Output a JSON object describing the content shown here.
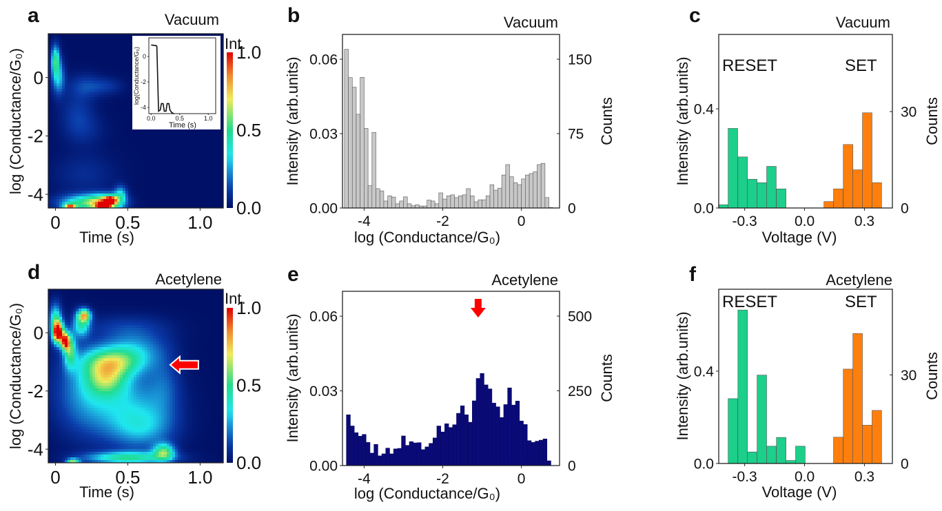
{
  "chart_data": [
    {
      "panel_label": "a",
      "type": "heatmap",
      "title": "Vacuum",
      "xlabel": "Time (s)",
      "ylabel": "log (Conductance/G₀)",
      "xlim": [
        -0.05,
        1.16
      ],
      "ylim": [
        -4.47,
        1.5
      ],
      "xticks": [
        0,
        0.5,
        1.0
      ],
      "xtick_labels": [
        "0",
        "0.5",
        "1.0"
      ],
      "yticks": [
        0,
        -2,
        -4
      ],
      "ytick_labels": [
        "0",
        "-2",
        "-4"
      ],
      "colorbar": {
        "label": "Int.",
        "range": [
          0,
          1
        ],
        "ticks": [
          0,
          0.5,
          1.0
        ],
        "tick_labels": [
          "0.0",
          "0.5",
          "1.0"
        ],
        "colormap": "jet"
      },
      "hotspots": [
        {
          "time": 0.0,
          "logG": 0.6,
          "intensity": 0.45,
          "sigma_time": 0.02,
          "sigma_logG": 0.35
        },
        {
          "time": 0.02,
          "logG": 0.0,
          "intensity": 0.3,
          "sigma_time": 0.03,
          "sigma_logG": 0.4
        },
        {
          "time": 0.2,
          "logG": -0.3,
          "intensity": 0.12,
          "sigma_time": 0.08,
          "sigma_logG": 0.3
        },
        {
          "time": 0.35,
          "logG": -0.3,
          "intensity": 0.1,
          "sigma_time": 0.08,
          "sigma_logG": 0.2
        },
        {
          "time": 0.15,
          "logG": -1.2,
          "intensity": 0.1,
          "sigma_time": 0.08,
          "sigma_logG": 0.5
        },
        {
          "time": 0.2,
          "logG": -1.8,
          "intensity": 0.07,
          "sigma_time": 0.1,
          "sigma_logG": 0.4
        },
        {
          "time": 0.2,
          "logG": -3.3,
          "intensity": 0.08,
          "sigma_time": 0.15,
          "sigma_logG": 0.5
        },
        {
          "time": 0.2,
          "logG": -4.3,
          "intensity": 0.45,
          "sigma_time": 0.12,
          "sigma_logG": 0.2
        },
        {
          "time": 0.35,
          "logG": -4.3,
          "intensity": 0.6,
          "sigma_time": 0.08,
          "sigma_logG": 0.2
        },
        {
          "time": 0.33,
          "logG": -4.45,
          "intensity": 0.9,
          "sigma_time": 0.03,
          "sigma_logG": 0.1
        },
        {
          "time": 0.38,
          "logG": -4.2,
          "intensity": 0.7,
          "sigma_time": 0.03,
          "sigma_logG": 0.1
        },
        {
          "time": 0.1,
          "logG": -4.45,
          "intensity": 0.8,
          "sigma_time": 0.03,
          "sigma_logG": 0.08
        },
        {
          "time": 0.45,
          "logG": -4.0,
          "intensity": 0.3,
          "sigma_time": 0.03,
          "sigma_logG": 0.2
        }
      ],
      "inset": {
        "type": "line",
        "xlabel": "Time (s)",
        "ylabel": "log(Conductance/G₀)",
        "xlim": [
          -0.04,
          1.13
        ],
        "ylim": [
          -4.49,
          1.46
        ],
        "xticks": [
          0,
          0.5,
          1.0
        ],
        "xtick_labels": [
          "0.0",
          "0.5",
          "1.0"
        ],
        "yticks": [
          0,
          -2,
          -4
        ],
        "ytick_labels": [
          "0",
          "-2",
          "-4"
        ],
        "x": [
          0,
          0.09,
          0.1,
          0.13,
          0.16,
          0.18,
          0.21,
          0.23,
          0.26,
          0.28,
          0.31,
          0.33,
          0.36,
          0.4
        ],
        "y": [
          0.9,
          0.85,
          0.8,
          -4.3,
          -4.2,
          -3.7,
          -3.7,
          -4.3,
          -4.3,
          -3.7,
          -3.7,
          -4.2,
          -4.4,
          -4.5
        ]
      }
    },
    {
      "panel_label": "b",
      "type": "bar",
      "title": "Vacuum",
      "xlabel": "log (Conductance/G₀)",
      "ylabel": "Intensity (arb.units)",
      "ylabel_right": "Counts",
      "xlim": [
        -4.55,
        0.97
      ],
      "ylim": [
        0,
        0.07
      ],
      "ylim_right": [
        0,
        175
      ],
      "xticks": [
        -4,
        -2,
        0
      ],
      "xtick_labels": [
        "-4",
        "-2",
        "0"
      ],
      "yticks": [
        0,
        0.03,
        0.06
      ],
      "ytick_labels": [
        "0.00",
        "0.03",
        "0.06"
      ],
      "yticks_right": [
        0,
        75,
        150
      ],
      "ytick_labels_right": [
        "0",
        "75",
        "150"
      ],
      "bin_width": 0.1,
      "color": "#c8c8c8",
      "x": [
        -4.45,
        -4.35,
        -4.25,
        -4.15,
        -4.05,
        -3.95,
        -3.85,
        -3.75,
        -3.65,
        -3.55,
        -3.45,
        -3.35,
        -3.25,
        -3.15,
        -3.05,
        -2.95,
        -2.85,
        -2.75,
        -2.65,
        -2.55,
        -2.45,
        -2.35,
        -2.25,
        -2.15,
        -2.05,
        -1.95,
        -1.85,
        -1.75,
        -1.65,
        -1.55,
        -1.45,
        -1.35,
        -1.25,
        -1.15,
        -1.05,
        -0.95,
        -0.85,
        -0.75,
        -0.65,
        -0.55,
        -0.45,
        -0.35,
        -0.25,
        -0.15,
        -0.05,
        0.05,
        0.15,
        0.25,
        0.35,
        0.45,
        0.55,
        0.65,
        0.75
      ],
      "values": [
        0.064,
        0.0526,
        0.0487,
        0.0378,
        0.0527,
        0.0321,
        0.009,
        0.0305,
        0.0078,
        0.0069,
        0.0028,
        0.0049,
        0.0044,
        0.0017,
        0.0028,
        0.0045,
        0.0017,
        0.0009,
        0.0013,
        0.0008,
        0.0008,
        0.0032,
        0.0028,
        0.0017,
        0.0061,
        0.0036,
        0.0049,
        0.0053,
        0.0042,
        0.0049,
        0.0053,
        0.0078,
        0.0049,
        0.0025,
        0.0033,
        0.0033,
        0.0049,
        0.0094,
        0.0072,
        0.008,
        0.0133,
        0.0175,
        0.0126,
        0.0102,
        0.0094,
        0.0117,
        0.0133,
        0.0139,
        0.0146,
        0.0175,
        0.018,
        0.0042,
        0.0002
      ]
    },
    {
      "panel_label": "c",
      "type": "bar",
      "title": "Vacuum",
      "xlabel": "Voltage (V)",
      "ylabel": "Intensity (arb.units)",
      "ylabel_right": "Counts",
      "xlim": [
        -0.43,
        0.44
      ],
      "ylim": [
        0,
        0.7
      ],
      "ylim_right": [
        0,
        54
      ],
      "xticks": [
        -0.3,
        0.0,
        0.3
      ],
      "xtick_labels": [
        "-0.3",
        "0.0",
        "0.3"
      ],
      "yticks": [
        0,
        0.4
      ],
      "ytick_labels": [
        "0.0",
        "0.4"
      ],
      "yticks_right": [
        0,
        30
      ],
      "ytick_labels_right": [
        "0",
        "30"
      ],
      "bin_width": 0.048,
      "annotations": [
        "RESET",
        "SET"
      ],
      "series": [
        {
          "name": "RESET",
          "color": "#1ccf8a",
          "x": [
            -0.407,
            -0.359,
            -0.31,
            -0.262,
            -0.214,
            -0.166,
            -0.117
          ],
          "values": [
            0.013,
            0.321,
            0.206,
            0.116,
            0.102,
            0.168,
            0.077
          ]
        },
        {
          "name": "SET",
          "color": "#ff7f0e",
          "x": [
            0.121,
            0.169,
            0.218,
            0.266,
            0.314,
            0.362
          ],
          "values": [
            0.026,
            0.077,
            0.256,
            0.154,
            0.384,
            0.102
          ]
        }
      ]
    },
    {
      "panel_label": "d",
      "type": "heatmap",
      "title": "Acetylene",
      "xlabel": "Time (s)",
      "ylabel": "log (Conductance/G₀)",
      "xlim": [
        -0.05,
        1.16
      ],
      "ylim": [
        -4.47,
        1.5
      ],
      "xticks": [
        0,
        0.5,
        1.0
      ],
      "xtick_labels": [
        "0",
        "0.5",
        "1.0"
      ],
      "yticks": [
        0,
        -2,
        -4
      ],
      "ytick_labels": [
        "0",
        "-2",
        "-4"
      ],
      "colorbar": {
        "label": "Int.",
        "range": [
          0,
          1
        ],
        "ticks": [
          0,
          0.5,
          1.0
        ],
        "tick_labels": [
          "0.0",
          "0.5",
          "1.0"
        ],
        "colormap": "jet"
      },
      "arrow": {
        "direction": "left",
        "time": 0.85,
        "logG": -1.1,
        "color": "#ff0000"
      },
      "hotspots": [
        {
          "time": 0.02,
          "logG": 0.0,
          "intensity": 1.0,
          "sigma_time": 0.025,
          "sigma_logG": 0.25
        },
        {
          "time": 0.07,
          "logG": -0.3,
          "intensity": 0.85,
          "sigma_time": 0.02,
          "sigma_logG": 0.2
        },
        {
          "time": 0.0,
          "logG": 0.4,
          "intensity": 0.45,
          "sigma_time": 0.03,
          "sigma_logG": 0.4
        },
        {
          "time": 0.1,
          "logG": -0.6,
          "intensity": 0.45,
          "sigma_time": 0.03,
          "sigma_logG": 0.4
        },
        {
          "time": 0.2,
          "logG": 0.6,
          "intensity": 0.6,
          "sigma_time": 0.03,
          "sigma_logG": 0.15
        },
        {
          "time": 0.18,
          "logG": 0.3,
          "intensity": 0.4,
          "sigma_time": 0.04,
          "sigma_logG": 0.3
        },
        {
          "time": 0.4,
          "logG": -1.0,
          "intensity": 0.5,
          "sigma_time": 0.15,
          "sigma_logG": 0.35
        },
        {
          "time": 0.35,
          "logG": -1.6,
          "intensity": 0.4,
          "sigma_time": 0.1,
          "sigma_logG": 0.4
        },
        {
          "time": 0.55,
          "logG": -0.5,
          "intensity": 0.2,
          "sigma_time": 0.15,
          "sigma_logG": 0.4
        },
        {
          "time": 0.5,
          "logG": 0.2,
          "intensity": 0.1,
          "sigma_time": 0.2,
          "sigma_logG": 0.3
        },
        {
          "time": 0.5,
          "logG": -2.5,
          "intensity": 0.25,
          "sigma_time": 0.2,
          "sigma_logG": 0.8
        },
        {
          "time": 0.2,
          "logG": -2.0,
          "intensity": 0.2,
          "sigma_time": 0.15,
          "sigma_logG": 1.0
        },
        {
          "time": 0.6,
          "logG": -3.3,
          "intensity": 0.2,
          "sigma_time": 0.15,
          "sigma_logG": 0.5
        },
        {
          "time": 0.5,
          "logG": -4.3,
          "intensity": 0.45,
          "sigma_time": 0.2,
          "sigma_logG": 0.15
        },
        {
          "time": 0.75,
          "logG": -4.1,
          "intensity": 0.5,
          "sigma_time": 0.05,
          "sigma_logG": 0.2
        },
        {
          "time": 0.12,
          "logG": -4.45,
          "intensity": 0.6,
          "sigma_time": 0.03,
          "sigma_logG": 0.08
        },
        {
          "time": 0.75,
          "logG": -1.8,
          "intensity": 0.12,
          "sigma_time": 0.08,
          "sigma_logG": 0.8
        }
      ]
    },
    {
      "panel_label": "e",
      "type": "bar",
      "title": "Acetylene",
      "xlabel": "log (Conductance/G₀)",
      "ylabel": "Intensity (arb.units)",
      "ylabel_right": "Counts",
      "xlim": [
        -4.55,
        0.97
      ],
      "ylim": [
        0,
        0.07
      ],
      "ylim_right": [
        0,
        583
      ],
      "xticks": [
        -4,
        -2,
        0
      ],
      "xtick_labels": [
        "-4",
        "-2",
        "0"
      ],
      "yticks": [
        0,
        0.03,
        0.06
      ],
      "ytick_labels": [
        "0.00",
        "0.03",
        "0.06"
      ],
      "yticks_right": [
        0,
        250,
        500
      ],
      "ytick_labels_right": [
        "0",
        "250",
        "500"
      ],
      "bin_width": 0.1,
      "color": "#0a0a78",
      "arrow": {
        "direction": "down",
        "x": -1.1,
        "color": "#ff0000"
      },
      "x": [
        -4.4,
        -4.3,
        -4.2,
        -4.1,
        -4.0,
        -3.9,
        -3.8,
        -3.7,
        -3.6,
        -3.5,
        -3.4,
        -3.3,
        -3.2,
        -3.1,
        -3.0,
        -2.9,
        -2.8,
        -2.7,
        -2.6,
        -2.5,
        -2.4,
        -2.3,
        -2.2,
        -2.1,
        -2.0,
        -1.9,
        -1.8,
        -1.7,
        -1.6,
        -1.5,
        -1.4,
        -1.3,
        -1.2,
        -1.1,
        -1.0,
        -0.9,
        -0.8,
        -0.7,
        -0.6,
        -0.5,
        -0.4,
        -0.3,
        -0.2,
        -0.1,
        0.0,
        0.1,
        0.2,
        0.3,
        0.4,
        0.5,
        0.6,
        0.7
      ],
      "values": [
        0.0204,
        0.0159,
        0.0132,
        0.0118,
        0.0125,
        0.0093,
        0.005,
        0.0085,
        0.0039,
        0.0047,
        0.007,
        0.0047,
        0.0067,
        0.0069,
        0.0119,
        0.0081,
        0.0096,
        0.0091,
        0.0092,
        0.0064,
        0.0075,
        0.0089,
        0.0111,
        0.0159,
        0.0135,
        0.0168,
        0.0153,
        0.0164,
        0.021,
        0.024,
        0.0204,
        0.0174,
        0.026,
        0.035,
        0.037,
        0.0324,
        0.0308,
        0.0251,
        0.0236,
        0.0193,
        0.0245,
        0.0312,
        0.0243,
        0.0259,
        0.0179,
        0.0165,
        0.01,
        0.0093,
        0.0098,
        0.0102,
        0.0107,
        0.0019
      ]
    },
    {
      "panel_label": "f",
      "type": "bar",
      "title": "Acetylene",
      "xlabel": "Voltage (V)",
      "ylabel": "Intensity (arb.units)",
      "ylabel_right": "Counts",
      "xlim": [
        -0.43,
        0.44
      ],
      "ylim": [
        0,
        0.755
      ],
      "ylim_right": [
        0,
        59
      ],
      "xticks": [
        -0.3,
        0.0,
        0.3
      ],
      "xtick_labels": [
        "-0.3",
        "0.0",
        "0.3"
      ],
      "yticks": [
        0,
        0.4
      ],
      "ytick_labels": [
        "0.0",
        "0.4"
      ],
      "yticks_right": [
        0,
        30
      ],
      "ytick_labels_right": [
        "0",
        "30"
      ],
      "bin_width": 0.048,
      "annotations": [
        "RESET",
        "SET"
      ],
      "series": [
        {
          "name": "RESET",
          "color": "#1ccf8a",
          "x": [
            -0.359,
            -0.31,
            -0.262,
            -0.214,
            -0.166,
            -0.117,
            -0.069,
            -0.021
          ],
          "values": [
            0.281,
            0.665,
            0.05,
            0.383,
            0.075,
            0.113,
            0.013,
            0.075
          ]
        },
        {
          "name": "SET",
          "color": "#ff7f0e",
          "x": [
            0.169,
            0.218,
            0.266,
            0.314,
            0.362
          ],
          "values": [
            0.114,
            0.409,
            0.563,
            0.166,
            0.23
          ]
        }
      ]
    }
  ]
}
